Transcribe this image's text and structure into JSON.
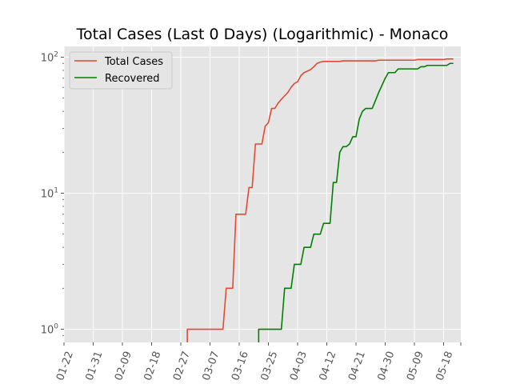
{
  "chart_data": {
    "type": "line",
    "title": "Total Cases (Last 0 Days) (Logarithmic) - Monaco",
    "xlabel": "",
    "ylabel": "",
    "y_scale": "log",
    "ylim": [
      0.8,
      120
    ],
    "grid": true,
    "background": "#e5e5e5",
    "legend_position": "top-left",
    "x_tick_labels": [
      "01-22",
      "01-31",
      "02-09",
      "02-18",
      "02-27",
      "03-07",
      "03-16",
      "03-25",
      "04-03",
      "04-12",
      "04-21",
      "04-30",
      "05-09",
      "05-18"
    ],
    "x_tick_dates": [
      "2020-01-22",
      "2020-01-31",
      "2020-02-09",
      "2020-02-18",
      "2020-02-27",
      "2020-03-07",
      "2020-03-16",
      "2020-03-25",
      "2020-04-03",
      "2020-04-12",
      "2020-04-21",
      "2020-04-30",
      "2020-05-09",
      "2020-05-18"
    ],
    "y_tick_labels": [
      {
        "value": 1,
        "base": "10",
        "exp": "0"
      },
      {
        "value": 10,
        "base": "10",
        "exp": "1"
      },
      {
        "value": 100,
        "base": "10",
        "exp": "2"
      }
    ],
    "series": [
      {
        "name": "Total Cases",
        "color": "#e24a33",
        "points": [
          [
            "2020-02-29",
            1
          ],
          [
            "2020-03-11",
            1
          ],
          [
            "2020-03-12",
            2
          ],
          [
            "2020-03-14",
            2
          ],
          [
            "2020-03-15",
            7
          ],
          [
            "2020-03-18",
            7
          ],
          [
            "2020-03-19",
            11
          ],
          [
            "2020-03-20",
            11
          ],
          [
            "2020-03-21",
            23
          ],
          [
            "2020-03-23",
            23
          ],
          [
            "2020-03-24",
            31
          ],
          [
            "2020-03-25",
            33
          ],
          [
            "2020-03-26",
            42
          ],
          [
            "2020-03-27",
            42
          ],
          [
            "2020-03-28",
            46
          ],
          [
            "2020-03-29",
            49
          ],
          [
            "2020-03-30",
            52
          ],
          [
            "2020-03-31",
            55
          ],
          [
            "2020-04-01",
            60
          ],
          [
            "2020-04-02",
            64
          ],
          [
            "2020-04-03",
            66
          ],
          [
            "2020-04-04",
            73
          ],
          [
            "2020-04-05",
            77
          ],
          [
            "2020-04-06",
            79
          ],
          [
            "2020-04-07",
            81
          ],
          [
            "2020-04-08",
            85
          ],
          [
            "2020-04-09",
            90
          ],
          [
            "2020-04-10",
            92
          ],
          [
            "2020-04-11",
            93
          ],
          [
            "2020-04-16",
            93
          ],
          [
            "2020-04-17",
            94
          ],
          [
            "2020-04-27",
            94
          ],
          [
            "2020-04-28",
            95
          ],
          [
            "2020-05-09",
            95
          ],
          [
            "2020-05-10",
            96
          ],
          [
            "2020-05-18",
            96
          ],
          [
            "2020-05-19",
            97
          ],
          [
            "2020-05-21",
            97
          ]
        ]
      },
      {
        "name": "Recovered",
        "color": "#008000",
        "points": [
          [
            "2020-03-22",
            1
          ],
          [
            "2020-03-29",
            1
          ],
          [
            "2020-03-30",
            2
          ],
          [
            "2020-04-01",
            2
          ],
          [
            "2020-04-02",
            3
          ],
          [
            "2020-04-04",
            3
          ],
          [
            "2020-04-05",
            4
          ],
          [
            "2020-04-07",
            4
          ],
          [
            "2020-04-08",
            5
          ],
          [
            "2020-04-10",
            5
          ],
          [
            "2020-04-11",
            6
          ],
          [
            "2020-04-13",
            6
          ],
          [
            "2020-04-14",
            12
          ],
          [
            "2020-04-15",
            12
          ],
          [
            "2020-04-16",
            20
          ],
          [
            "2020-04-17",
            22
          ],
          [
            "2020-04-18",
            22
          ],
          [
            "2020-04-19",
            23
          ],
          [
            "2020-04-20",
            26
          ],
          [
            "2020-04-21",
            26
          ],
          [
            "2020-04-22",
            35
          ],
          [
            "2020-04-23",
            40
          ],
          [
            "2020-04-24",
            42
          ],
          [
            "2020-04-26",
            42
          ],
          [
            "2020-04-27",
            48
          ],
          [
            "2020-04-28",
            55
          ],
          [
            "2020-04-29",
            62
          ],
          [
            "2020-04-30",
            70
          ],
          [
            "2020-05-01",
            77
          ],
          [
            "2020-05-03",
            77
          ],
          [
            "2020-05-04",
            82
          ],
          [
            "2020-05-10",
            82
          ],
          [
            "2020-05-11",
            85
          ],
          [
            "2020-05-12",
            85
          ],
          [
            "2020-05-13",
            87
          ],
          [
            "2020-05-19",
            87
          ],
          [
            "2020-05-20",
            90
          ],
          [
            "2020-05-21",
            90
          ]
        ]
      }
    ]
  }
}
